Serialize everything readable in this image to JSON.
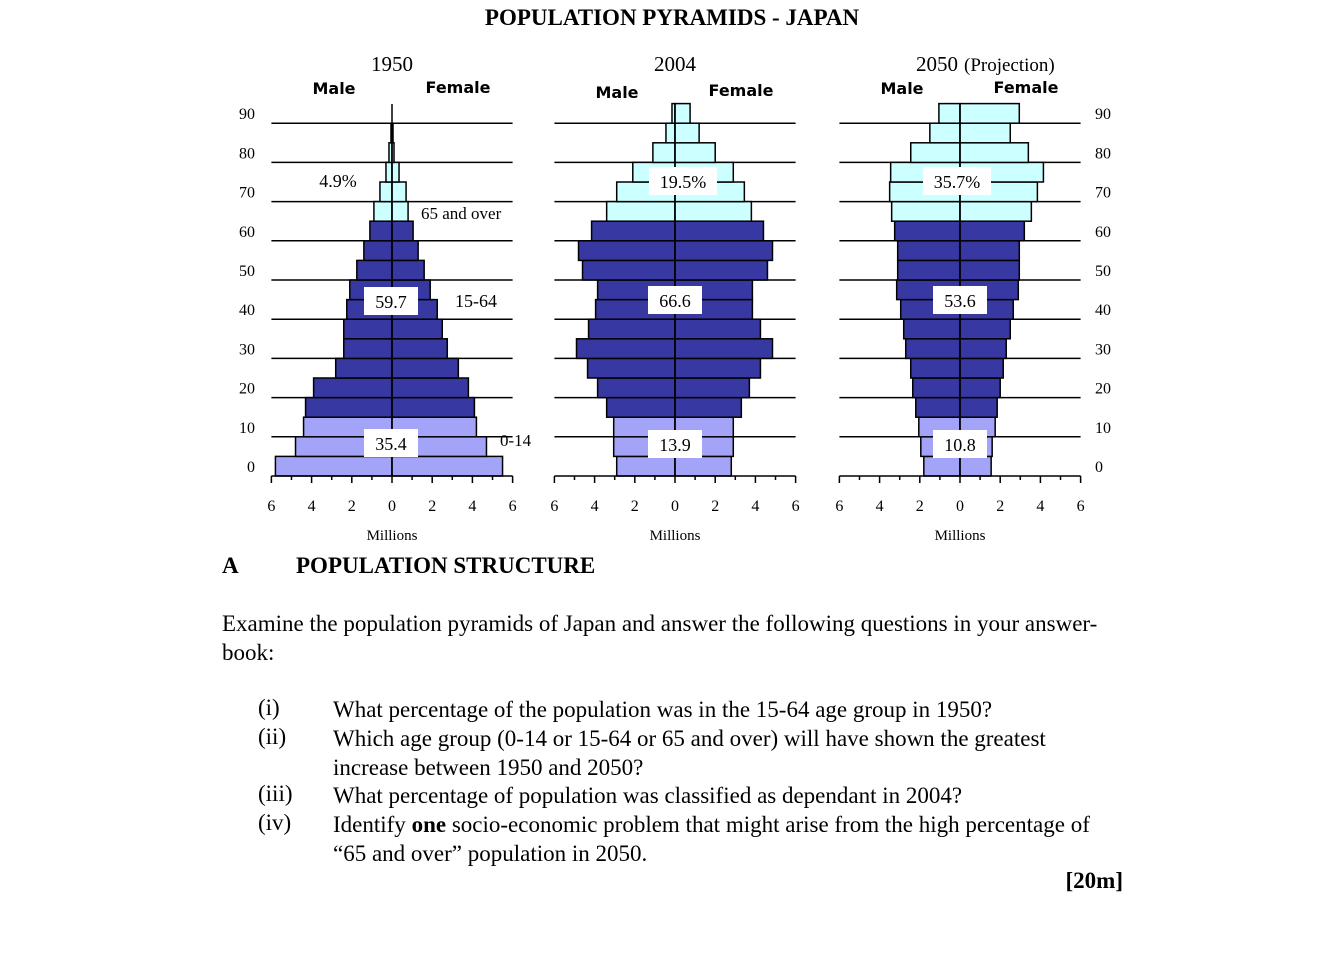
{
  "document": {
    "title": "POPULATION PYRAMIDS - JAPAN",
    "section_letter": "A",
    "section_title": "POPULATION STRUCTURE",
    "intro": "Examine the population pyramids of Japan and answer the following questions in your answer-book:",
    "questions": [
      {
        "num": "(i)",
        "text": "What percentage of the population was in the 15-64 age group in 1950?"
      },
      {
        "num": "(ii)",
        "text": "Which age group (0-14 or 15-64 or 65 and over) will have shown the greatest increase between 1950 and 2050?"
      },
      {
        "num": "(iii)",
        "text": "What percentage of population was classified as dependant in 2004?"
      },
      {
        "num": "(iv)",
        "text_before": "Identify ",
        "text_bold": "one",
        "text_after": " socio-economic problem that might arise from the high percentage of “65 and over” population in 2050."
      }
    ],
    "marks": "[20m]"
  },
  "chart_data": [
    {
      "type": "bar",
      "orientation": "horizontal-pyramid",
      "title": "1950",
      "subtitle": "",
      "left_label": "Male",
      "right_label": "Female",
      "xlabel": "Millions",
      "xlim": [
        -6,
        6
      ],
      "x_ticks": [
        "6",
        "4",
        "2",
        "0",
        "2",
        "4",
        "6"
      ],
      "y_ticks": [
        "0",
        "10",
        "20",
        "30",
        "40",
        "50",
        "60",
        "70",
        "80",
        "90"
      ],
      "age_groups": [
        "0-4",
        "5-9",
        "10-14",
        "15-19",
        "20-24",
        "25-29",
        "30-34",
        "35-39",
        "40-44",
        "45-49",
        "50-54",
        "55-59",
        "60-64",
        "65-69",
        "70-74",
        "75-79",
        "80-84",
        "85-89",
        "90+"
      ],
      "series": [
        {
          "name": "Male",
          "values": [
            5.8,
            4.8,
            4.4,
            4.3,
            3.9,
            2.8,
            2.4,
            2.4,
            2.25,
            2.1,
            1.75,
            1.4,
            1.1,
            0.9,
            0.6,
            0.3,
            0.15,
            0.05,
            0
          ]
        },
        {
          "name": "Female",
          "values": [
            5.5,
            4.7,
            4.2,
            4.1,
            3.8,
            3.3,
            2.75,
            2.5,
            2.25,
            1.9,
            1.6,
            1.3,
            1.05,
            0.8,
            0.7,
            0.35,
            0.1,
            0.05,
            0
          ]
        }
      ],
      "annotations": {
        "old": "4.9%",
        "working": "59.7",
        "young": "35.4",
        "old_group": "65 and over",
        "working_group": "15-64",
        "young_group": "0-14"
      }
    },
    {
      "type": "bar",
      "orientation": "horizontal-pyramid",
      "title": "2004",
      "subtitle": "",
      "left_label": "Male",
      "right_label": "Female",
      "xlabel": "Millions",
      "xlim": [
        -6,
        6
      ],
      "x_ticks": [
        "6",
        "4",
        "2",
        "0",
        "2",
        "4",
        "6"
      ],
      "age_groups": [
        "0-4",
        "5-9",
        "10-14",
        "15-19",
        "20-24",
        "25-29",
        "30-34",
        "35-39",
        "40-44",
        "45-49",
        "50-54",
        "55-59",
        "60-64",
        "65-69",
        "70-74",
        "75-79",
        "80-84",
        "85-89",
        "90+"
      ],
      "series": [
        {
          "name": "Male",
          "values": [
            2.9,
            3.05,
            3.05,
            3.4,
            3.85,
            4.35,
            4.9,
            4.3,
            3.95,
            3.85,
            4.6,
            4.8,
            4.15,
            3.4,
            2.9,
            2.1,
            1.1,
            0.45,
            0.15
          ]
        },
        {
          "name": "Female",
          "values": [
            2.8,
            2.9,
            2.9,
            3.3,
            3.7,
            4.25,
            4.85,
            4.25,
            3.85,
            3.85,
            4.6,
            4.85,
            4.4,
            3.8,
            3.45,
            2.9,
            2.0,
            1.2,
            0.75
          ]
        }
      ],
      "annotations": {
        "old": "19.5%",
        "working": "66.6",
        "young": "13.9"
      }
    },
    {
      "type": "bar",
      "orientation": "horizontal-pyramid",
      "title": "2050",
      "subtitle": "(Projection)",
      "left_label": "Male",
      "right_label": "Female",
      "xlabel": "Millions",
      "xlim": [
        -6,
        6
      ],
      "x_ticks": [
        "6",
        "4",
        "2",
        "0",
        "2",
        "4",
        "6"
      ],
      "y_ticks": [
        "0",
        "10",
        "20",
        "30",
        "40",
        "50",
        "60",
        "70",
        "80",
        "90"
      ],
      "age_groups": [
        "0-4",
        "5-9",
        "10-14",
        "15-19",
        "20-24",
        "25-29",
        "30-34",
        "35-39",
        "40-44",
        "45-49",
        "50-54",
        "55-59",
        "60-64",
        "65-69",
        "70-74",
        "75-79",
        "80-84",
        "85-89",
        "90+"
      ],
      "series": [
        {
          "name": "Male",
          "values": [
            1.8,
            1.95,
            2.05,
            2.2,
            2.35,
            2.45,
            2.7,
            2.8,
            2.95,
            3.15,
            3.1,
            3.1,
            3.25,
            3.4,
            3.5,
            3.45,
            2.45,
            1.5,
            1.05
          ]
        },
        {
          "name": "Female",
          "values": [
            1.55,
            1.6,
            1.75,
            1.85,
            2.0,
            2.15,
            2.3,
            2.5,
            2.65,
            2.9,
            2.95,
            2.95,
            3.2,
            3.55,
            3.85,
            4.15,
            3.4,
            2.5,
            2.95
          ]
        }
      ],
      "annotations": {
        "old": "35.7%",
        "working": "53.6",
        "young": "10.8"
      }
    }
  ],
  "colors": {
    "young": "#a3a3f7",
    "working": "#3838a2",
    "old": "#ccffff",
    "outline": "#000000"
  }
}
